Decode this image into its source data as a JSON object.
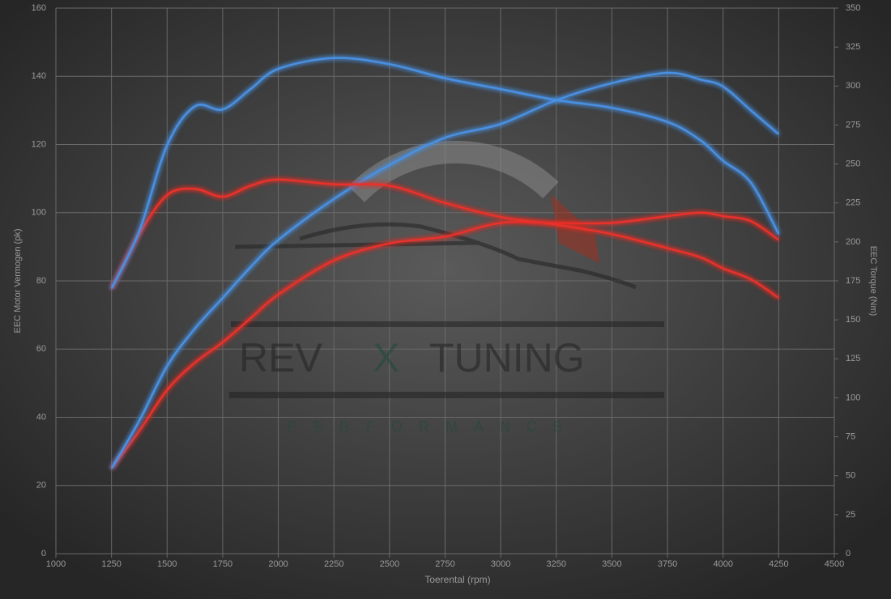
{
  "chart_data": {
    "type": "line",
    "x_label": "Toerental (rpm)",
    "y_label": "EEC Motor Vermogen (pk)",
    "y2_label": "EEC Torque (Nm)",
    "x": [
      1250,
      1375,
      1500,
      1625,
      1750,
      1875,
      2000,
      2250,
      2500,
      2750,
      3000,
      3250,
      3500,
      3750,
      3900,
      4000,
      4125,
      4250
    ],
    "series": [
      {
        "color": "#e8302a",
        "values": [
          25,
          36,
          48,
          56,
          62,
          69,
          76,
          86,
          91,
          93,
          97,
          97,
          97,
          99,
          100,
          99,
          97.5,
          92
        ]
      },
      {
        "color": "#4a90e2",
        "values": [
          25,
          39,
          55,
          66,
          75,
          84,
          92,
          104,
          114,
          122,
          126,
          133,
          138,
          141,
          139,
          137,
          130,
          123
        ]
      },
      {
        "color": "#e8302a",
        "axis": "y2",
        "values": [
          170,
          205,
          230,
          234,
          229,
          236,
          240,
          237,
          236,
          225,
          216,
          211,
          205,
          196,
          190,
          183,
          176,
          164
        ]
      },
      {
        "color": "#4a90e2",
        "axis": "y2",
        "values": [
          170,
          207,
          262,
          287,
          285,
          298,
          311,
          318,
          314,
          305,
          298,
          291,
          286,
          277,
          265,
          252,
          238,
          205
        ]
      }
    ],
    "xlim": [
      1000,
      4500
    ],
    "xticks": [
      1000,
      1250,
      1500,
      1750,
      2000,
      2250,
      2500,
      2750,
      3000,
      3250,
      3500,
      3750,
      4000,
      4250,
      4500
    ],
    "ylim": [
      0,
      160
    ],
    "yticks": [
      0,
      20,
      40,
      60,
      80,
      100,
      120,
      140,
      160
    ],
    "y2lim": [
      0,
      350
    ],
    "y2ticks": [
      0,
      25,
      50,
      75,
      100,
      125,
      150,
      175,
      200,
      225,
      250,
      275,
      300,
      325,
      350
    ],
    "grid": true
  },
  "watermark": {
    "brand": [
      "REV",
      "X",
      "TUNING"
    ],
    "tagline": "PERFORMANCE"
  }
}
